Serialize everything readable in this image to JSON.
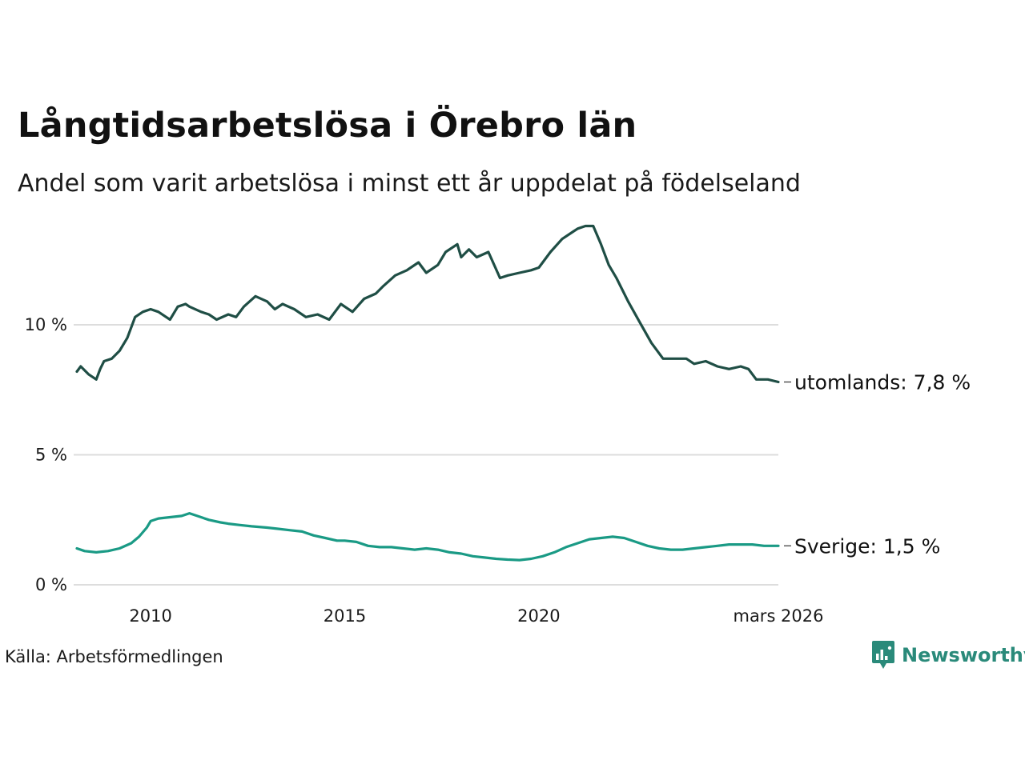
{
  "header": {
    "title": "Långtidsarbetslösa i Örebro län",
    "subtitle": "Andel som varit arbetslösa i minst ett år uppdelat på födelseland"
  },
  "footer": {
    "source": "Källa: Arbetsförmedlingen",
    "brand": "Newsworthy"
  },
  "colors": {
    "utomlands": "#1f4e45",
    "sverige": "#1a9a85",
    "grid": "#dddddd",
    "brand": "#2a8a7a"
  },
  "chart_data": {
    "type": "line",
    "title": "Långtidsarbetslösa i Örebro län",
    "subtitle": "Andel som varit arbetslösa i minst ett år uppdelat på födelseland",
    "xlabel": "",
    "ylabel": "",
    "xlim": [
      2008.1,
      2026.17
    ],
    "ylim": [
      0,
      14
    ],
    "y_ticks": [
      0,
      5,
      10
    ],
    "y_tick_labels": [
      "0 %",
      "5 %",
      "10 %"
    ],
    "x_ticks": [
      2010,
      2015,
      2020,
      2026.17
    ],
    "x_tick_labels": [
      "2010",
      "2015",
      "2020",
      "mars 2026"
    ],
    "grid": true,
    "series": [
      {
        "name": "utomlands",
        "end_label": "utomlands: 7,8 %",
        "x": [
          2008.1,
          2008.2,
          2008.4,
          2008.6,
          2008.7,
          2008.8,
          2009.0,
          2009.2,
          2009.4,
          2009.6,
          2009.8,
          2010.0,
          2010.2,
          2010.4,
          2010.5,
          2010.7,
          2010.9,
          2011.0,
          2011.3,
          2011.5,
          2011.7,
          2012.0,
          2012.2,
          2012.4,
          2012.7,
          2013.0,
          2013.2,
          2013.4,
          2013.7,
          2014.0,
          2014.3,
          2014.6,
          2014.9,
          2015.2,
          2015.5,
          2015.8,
          2016.0,
          2016.3,
          2016.6,
          2016.9,
          2017.1,
          2017.4,
          2017.6,
          2017.9,
          2018.0,
          2018.2,
          2018.4,
          2018.7,
          2019.0,
          2019.2,
          2019.5,
          2019.8,
          2020.0,
          2020.3,
          2020.6,
          2020.9,
          2021.0,
          2021.2,
          2021.4,
          2021.6,
          2021.8,
          2022.0,
          2022.3,
          2022.6,
          2022.9,
          2023.2,
          2023.5,
          2023.8,
          2024.0,
          2024.3,
          2024.6,
          2024.9,
          2025.2,
          2025.4,
          2025.6,
          2025.9,
          2026.17
        ],
        "values": [
          8.2,
          8.4,
          8.1,
          7.9,
          8.3,
          8.6,
          8.7,
          9.0,
          9.5,
          10.3,
          10.5,
          10.6,
          10.5,
          10.3,
          10.2,
          10.7,
          10.8,
          10.7,
          10.5,
          10.4,
          10.2,
          10.4,
          10.3,
          10.7,
          11.1,
          10.9,
          10.6,
          10.8,
          10.6,
          10.3,
          10.4,
          10.2,
          10.8,
          10.5,
          11.0,
          11.2,
          11.5,
          11.9,
          12.1,
          12.4,
          12.0,
          12.3,
          12.8,
          13.1,
          12.6,
          12.9,
          12.6,
          12.8,
          11.8,
          11.9,
          12.0,
          12.1,
          12.2,
          12.8,
          13.3,
          13.6,
          13.7,
          13.8,
          13.8,
          13.1,
          12.3,
          11.8,
          10.9,
          10.1,
          9.3,
          8.7,
          8.7,
          8.7,
          8.5,
          8.6,
          8.4,
          8.3,
          8.4,
          8.3,
          7.9,
          7.9,
          7.8
        ]
      },
      {
        "name": "Sverige",
        "end_label": "Sverige: 1,5 %",
        "x": [
          2008.1,
          2008.3,
          2008.6,
          2008.9,
          2009.2,
          2009.5,
          2009.7,
          2009.9,
          2010.0,
          2010.2,
          2010.5,
          2010.8,
          2011.0,
          2011.2,
          2011.5,
          2011.8,
          2012.0,
          2012.3,
          2012.6,
          2013.0,
          2013.3,
          2013.6,
          2013.9,
          2014.2,
          2014.5,
          2014.8,
          2015.0,
          2015.3,
          2015.6,
          2015.9,
          2016.2,
          2016.5,
          2016.8,
          2017.1,
          2017.4,
          2017.7,
          2018.0,
          2018.3,
          2018.6,
          2018.9,
          2019.2,
          2019.5,
          2019.8,
          2020.1,
          2020.4,
          2020.7,
          2021.0,
          2021.3,
          2021.6,
          2021.9,
          2022.2,
          2022.5,
          2022.8,
          2023.1,
          2023.4,
          2023.7,
          2024.0,
          2024.3,
          2024.6,
          2024.9,
          2025.2,
          2025.5,
          2025.8,
          2026.17
        ],
        "values": [
          1.4,
          1.3,
          1.25,
          1.3,
          1.4,
          1.6,
          1.85,
          2.2,
          2.45,
          2.55,
          2.6,
          2.65,
          2.75,
          2.65,
          2.5,
          2.4,
          2.35,
          2.3,
          2.25,
          2.2,
          2.15,
          2.1,
          2.05,
          1.9,
          1.8,
          1.7,
          1.7,
          1.65,
          1.5,
          1.45,
          1.45,
          1.4,
          1.35,
          1.4,
          1.35,
          1.25,
          1.2,
          1.1,
          1.05,
          1.0,
          0.97,
          0.95,
          1.0,
          1.1,
          1.25,
          1.45,
          1.6,
          1.75,
          1.8,
          1.85,
          1.8,
          1.65,
          1.5,
          1.4,
          1.35,
          1.35,
          1.4,
          1.45,
          1.5,
          1.55,
          1.55,
          1.55,
          1.5,
          1.5
        ]
      }
    ]
  }
}
